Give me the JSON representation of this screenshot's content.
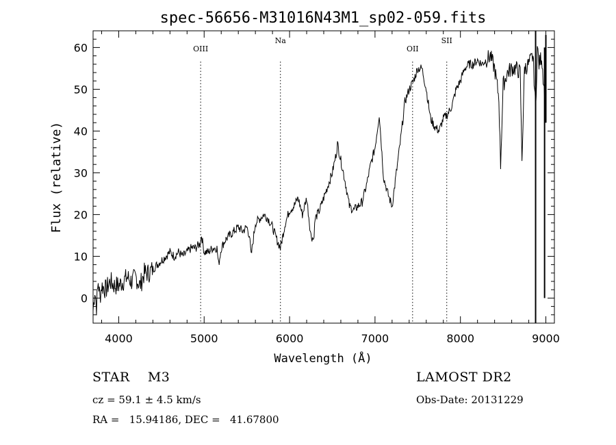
{
  "chart_data": {
    "type": "line",
    "title": "spec-56656-M31016N43M1_sp02-059.fits",
    "xlabel": "Wavelength (Å)",
    "ylabel": "Flux (relative)",
    "xlim": [
      3700,
      9100
    ],
    "ylim": [
      -6,
      64
    ],
    "xticks": [
      4000,
      5000,
      6000,
      7000,
      8000,
      9000
    ],
    "yticks": [
      0,
      10,
      20,
      30,
      40,
      50,
      60
    ],
    "grid": false,
    "color": "#000000",
    "lines": [
      {
        "label": "OIII",
        "x": 4959
      },
      {
        "label": "Na",
        "x": 5893
      },
      {
        "label": "OII",
        "x": 7440
      },
      {
        "label": "SII",
        "x": 7840
      }
    ],
    "spectrum": {
      "x": [
        3700,
        3720,
        3740,
        3760,
        3780,
        3800,
        3850,
        3900,
        3950,
        4000,
        4050,
        4100,
        4150,
        4200,
        4250,
        4300,
        4350,
        4400,
        4450,
        4500,
        4550,
        4600,
        4650,
        4700,
        4750,
        4800,
        4850,
        4900,
        4950,
        4970,
        5000,
        5050,
        5100,
        5150,
        5170,
        5200,
        5250,
        5300,
        5350,
        5400,
        5450,
        5500,
        5530,
        5550,
        5600,
        5650,
        5700,
        5750,
        5800,
        5850,
        5893,
        5950,
        6000,
        6050,
        6100,
        6150,
        6200,
        6250,
        6280,
        6300,
        6350,
        6400,
        6450,
        6500,
        6550,
        6560,
        6600,
        6650,
        6700,
        6750,
        6800,
        6850,
        6900,
        6950,
        7000,
        7050,
        7100,
        7150,
        7200,
        7250,
        7300,
        7350,
        7400,
        7450,
        7500,
        7550,
        7600,
        7650,
        7700,
        7750,
        7800,
        7850,
        7900,
        7950,
        8000,
        8050,
        8100,
        8150,
        8200,
        8250,
        8300,
        8350,
        8400,
        8450,
        8470,
        8500,
        8550,
        8600,
        8650,
        8700,
        8720,
        8750,
        8800,
        8850,
        8880,
        8900,
        8920,
        8950,
        8980,
        9000
      ],
      "y": [
        -3,
        2,
        -2,
        4,
        0,
        3,
        2,
        4,
        3,
        3,
        4,
        5,
        4,
        5,
        3,
        6,
        6,
        7,
        8,
        9,
        10,
        11,
        10,
        11,
        10,
        11,
        12,
        12,
        13,
        15,
        11,
        11,
        12,
        12,
        8,
        12,
        14,
        15,
        16,
        17,
        16,
        17,
        15,
        10,
        18,
        19,
        20,
        19,
        17,
        14,
        12,
        18,
        21,
        22,
        24,
        20,
        24,
        15,
        14,
        19,
        21,
        24,
        27,
        30,
        35,
        37,
        33,
        28,
        22,
        21,
        22,
        23,
        27,
        32,
        36,
        44,
        29,
        25,
        22,
        30,
        38,
        47,
        50,
        52,
        55,
        55,
        50,
        43,
        41,
        40,
        43,
        44,
        46,
        50,
        52,
        55,
        56,
        56,
        57,
        56,
        57,
        58,
        55,
        48,
        32,
        51,
        54,
        55,
        55,
        54,
        33,
        55,
        56,
        58,
        45,
        60,
        56,
        58,
        50,
        45
      ]
    }
  },
  "info": {
    "object": "STAR    M3",
    "survey": "LAMOST DR2",
    "cz": "cz = 59.1 ± 4.5 km/s",
    "obs_date": "Obs-Date: 20131229",
    "radec": "RA =   15.94186, DEC =   41.67800"
  }
}
